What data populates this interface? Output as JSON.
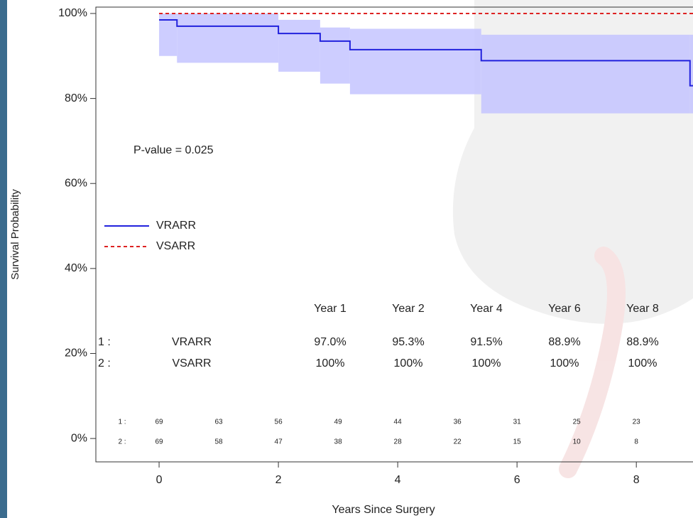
{
  "chart_data": {
    "type": "step",
    "y_label": "Survival Probability",
    "x_label": "Years Since Surgery",
    "annotation": "P-value = 0.025",
    "xlim": [
      -1.06,
      8.95
    ],
    "xticks": [
      0,
      2,
      4,
      6,
      8
    ],
    "ylim": [
      -5.5,
      101.5
    ],
    "yticks": [
      {
        "value": 0,
        "label": "0%"
      },
      {
        "value": 20,
        "label": "20%"
      },
      {
        "value": 40,
        "label": "40%"
      },
      {
        "value": 60,
        "label": "60%"
      },
      {
        "value": 80,
        "label": "80%"
      },
      {
        "value": 100,
        "label": "100%"
      }
    ],
    "series": [
      {
        "name": "VRARR",
        "color": "#2222dd",
        "band_color": "#c4c4ff",
        "dash": false,
        "x": [
          0,
          0.3,
          2.0,
          2.7,
          3.2,
          5.4,
          8.9
        ],
        "values": [
          98.5,
          97,
          95.3,
          93.5,
          91.5,
          88.9,
          83
        ],
        "ci_lower": [
          90,
          88.4,
          86.3,
          83.5,
          81,
          76.5,
          76.5
        ],
        "ci_upper": [
          100,
          100,
          98.5,
          96.7,
          96.4,
          95,
          95
        ]
      },
      {
        "name": "VSARR",
        "color": "#dd2222",
        "dash": true,
        "x": [
          0,
          8.95
        ],
        "values": [
          100,
          100
        ]
      }
    ],
    "summary_table": {
      "columns": [
        "Year 1",
        "Year 2",
        "Year 4",
        "Year 6",
        "Year 8"
      ],
      "rows": [
        {
          "index": "1 :",
          "name": "VRARR",
          "values": [
            97.0,
            95.3,
            91.5,
            88.9,
            88.9
          ],
          "value_labels": [
            "97.0%",
            "95.3%",
            "91.5%",
            "88.9%",
            "88.9%"
          ]
        },
        {
          "index": "2 :",
          "name": "VSARR",
          "values": [
            100,
            100,
            100,
            100,
            100
          ],
          "value_labels": [
            "100%",
            "100%",
            "100%",
            "100%",
            "100%"
          ]
        }
      ]
    },
    "risk_table": {
      "x": [
        0,
        1,
        2,
        3,
        4,
        5,
        6,
        7,
        8
      ],
      "rows": [
        {
          "index": "1 :",
          "values": [
            69,
            63,
            56,
            49,
            44,
            36,
            31,
            25,
            23
          ]
        },
        {
          "index": "2 :",
          "values": [
            69,
            58,
            47,
            38,
            28,
            22,
            15,
            10,
            8
          ]
        }
      ]
    }
  }
}
